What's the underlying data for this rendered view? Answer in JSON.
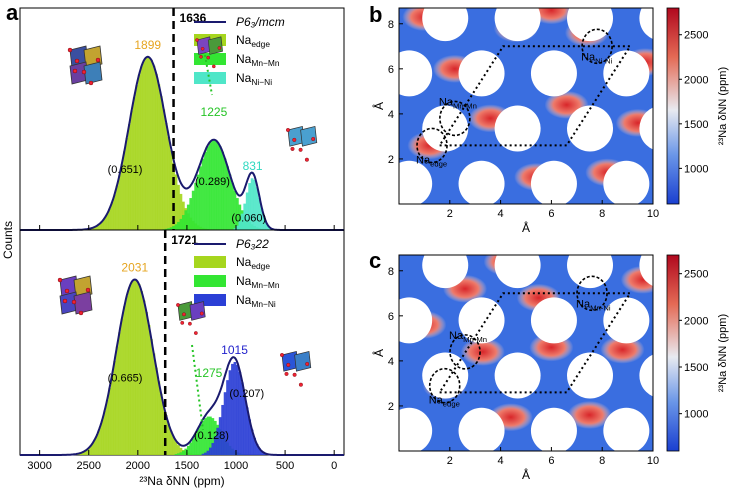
{
  "panels": {
    "a": {
      "letter": "a"
    },
    "b": {
      "letter": "b"
    },
    "c": {
      "letter": "c"
    }
  },
  "colors": {
    "na_edge": "#a6d61e",
    "na_mn_mn": "#33e633",
    "na_ni_ni": "#4fe6c8",
    "na_mn_ni": "#2b3fd6",
    "envelope": "#1a1a6e",
    "label_1899": "#e6a520",
    "label_1225": "#25c425",
    "label_831": "#2fd9c0",
    "label_1015": "#2222cc"
  },
  "chart_data": [
    {
      "id": "a_top",
      "type": "area",
      "ylabel": "Counts",
      "xlim": [
        3200,
        -100
      ],
      "ticks": [
        3000,
        2500,
        2000,
        1500,
        1000,
        500,
        0
      ],
      "vline": {
        "x": 1636,
        "label": "1636"
      },
      "legend": {
        "placement": "top-right",
        "line": "P6₃/mcm",
        "entries": [
          "Na_edge",
          "Na_Mn−Mn",
          "Na_Ni−Ni"
        ]
      },
      "peaks": [
        {
          "label": "1899",
          "x": 1899,
          "color_key": "label_1899"
        },
        {
          "label": "1225",
          "x": 1225,
          "color_key": "label_1225"
        },
        {
          "label": "831",
          "x": 831,
          "color_key": "label_831"
        }
      ],
      "fractions": [
        {
          "label": "(0.651)",
          "x": 2130,
          "y": 0.33
        },
        {
          "label": "(0.289)",
          "x": 1240,
          "y": 0.26
        },
        {
          "label": "(0.060)",
          "x": 870,
          "y": 0.05
        }
      ],
      "series": [
        {
          "name": "Na_edge",
          "color_key": "na_edge",
          "mu": 1899,
          "sigma": 190,
          "amp": 1.0
        },
        {
          "name": "Na_Mn−Mn",
          "color_key": "na_mn_mn",
          "mu": 1225,
          "sigma": 165,
          "amp": 0.52
        },
        {
          "name": "Na_Ni−Ni",
          "color_key": "na_ni_ni",
          "mu": 831,
          "sigma": 70,
          "amp": 0.3
        }
      ]
    },
    {
      "id": "a_bottom",
      "type": "area",
      "xlabel": "²³Na δNN (ppm)",
      "xlim": [
        3200,
        -100
      ],
      "ticks": [
        3000,
        2500,
        2000,
        1500,
        1000,
        500,
        0
      ],
      "vline": {
        "x": 1721,
        "label": "1721"
      },
      "legend": {
        "placement": "top-right",
        "line": "P6₃22",
        "entries": [
          "Na_edge",
          "Na_Mn−Mn",
          "Na_Mn−Ni"
        ]
      },
      "peaks": [
        {
          "label": "2031",
          "x": 2031,
          "color_key": "label_1899"
        },
        {
          "label": "1275",
          "x": 1275,
          "color_key": "label_1225"
        },
        {
          "label": "1015",
          "x": 1015,
          "color_key": "label_1015"
        }
      ],
      "fractions": [
        {
          "label": "(0.665)",
          "x": 2130,
          "y": 0.42
        },
        {
          "label": "(0.207)",
          "x": 890,
          "y": 0.33
        },
        {
          "label": "(0.128)",
          "x": 1250,
          "y": 0.09
        }
      ],
      "series": [
        {
          "name": "Na_edge",
          "color_key": "na_edge",
          "mu": 2031,
          "sigma": 185,
          "amp": 1.0
        },
        {
          "name": "Na_Mn−Mn",
          "color_key": "na_mn_mn",
          "mu": 1275,
          "sigma": 125,
          "amp": 0.22
        },
        {
          "name": "Na_Mn−Ni",
          "color_key": "na_mn_ni",
          "mu": 1015,
          "sigma": 110,
          "amp": 0.53
        }
      ]
    },
    {
      "id": "b",
      "type": "heatmap",
      "xlabel": "Å",
      "ylabel": "Å",
      "xlim": [
        0,
        10
      ],
      "ylim": [
        0,
        8.7
      ],
      "xticks": [
        2,
        4,
        6,
        8,
        10
      ],
      "yticks": [
        2,
        4,
        6,
        8
      ],
      "colorbar": {
        "label": "²³Na δNN (ppm)",
        "range": [
          600,
          2800
        ],
        "ticks": [
          1000,
          1500,
          2000,
          2500
        ]
      },
      "annotations": [
        {
          "label": "Na_Mn-Mn",
          "x": 2.2,
          "y": 3.8
        },
        {
          "label": "Na_Ni-Ni",
          "x": 7.8,
          "y": 7.0
        },
        {
          "label": "Na_edge",
          "x": 1.3,
          "y": 2.6
        }
      ]
    },
    {
      "id": "c",
      "type": "heatmap",
      "xlabel": "Å",
      "ylabel": "Å",
      "xlim": [
        0,
        10
      ],
      "ylim": [
        0,
        8.7
      ],
      "xticks": [
        2,
        4,
        6,
        8,
        10
      ],
      "yticks": [
        2,
        4,
        6,
        8
      ],
      "colorbar": {
        "label": "²³Na δNN (ppm)",
        "range": [
          600,
          2700
        ],
        "ticks": [
          1000,
          1500,
          2000,
          2500
        ]
      },
      "annotations": [
        {
          "label": "Na_Mn-Mn",
          "x": 2.6,
          "y": 4.4
        },
        {
          "label": "Na_Mn-Ni",
          "x": 7.6,
          "y": 7.0
        },
        {
          "label": "Na_edge",
          "x": 1.8,
          "y": 2.9
        }
      ]
    }
  ]
}
